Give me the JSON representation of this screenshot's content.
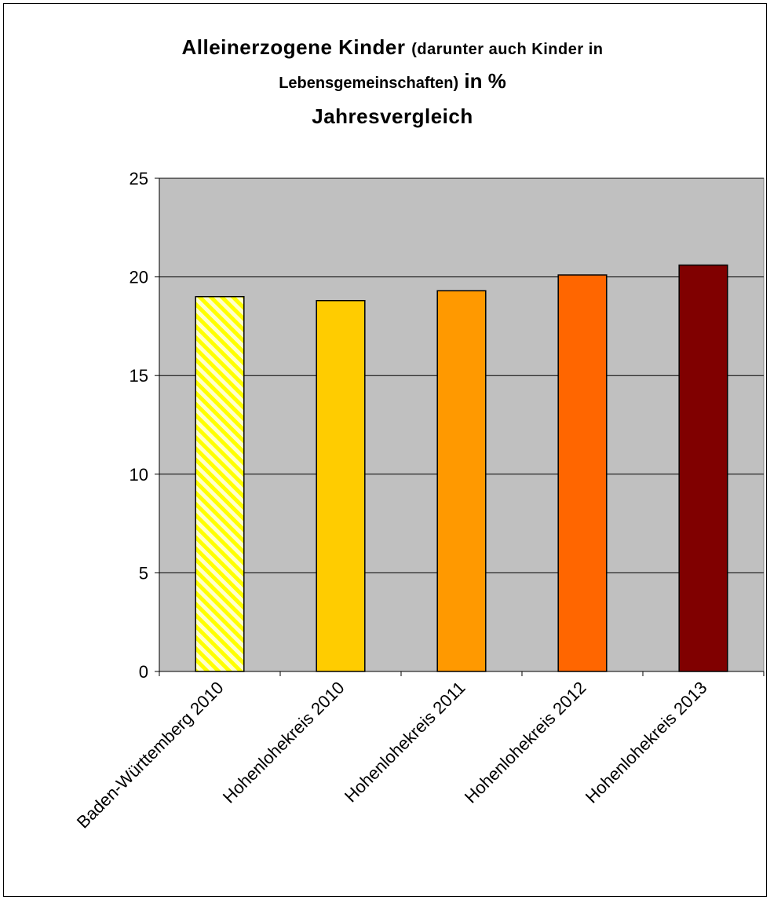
{
  "chart_data": {
    "type": "bar",
    "title_parts": {
      "line1_main": "Alleinerzogene Kinder ",
      "line1_small": "(darunter auch Kinder in",
      "line2_small": "Lebensgemeinschaften)",
      "line2_main": " in %",
      "line3_main": "Jahresvergleich"
    },
    "categories": [
      "Baden-Württemberg 2010",
      "Hohenlohekreis 2010",
      "Hohenlohekreis 2011",
      "Hohenlohekreis 2012",
      "Hohenlohekreis 2013"
    ],
    "values": [
      19.0,
      18.8,
      19.3,
      20.1,
      20.6
    ],
    "colors": [
      "hatch-yellow",
      "#ffcc00",
      "#ff9900",
      "#ff6600",
      "#800000"
    ],
    "ylim": [
      0,
      25
    ],
    "yticks": [
      "0",
      "5",
      "10",
      "15",
      "20",
      "25"
    ],
    "plot_background": "#c0c0c0",
    "grid": true,
    "xlabel": "",
    "ylabel": ""
  }
}
